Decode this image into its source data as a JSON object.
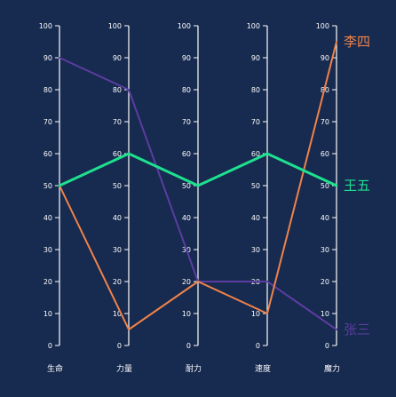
{
  "chart_data": {
    "type": "line",
    "subtype": "parallel-coordinates",
    "categories": [
      "生命",
      "力量",
      "耐力",
      "速度",
      "魔力"
    ],
    "ylim": [
      0,
      100
    ],
    "ticks": [
      0,
      10,
      20,
      30,
      40,
      50,
      60,
      70,
      80,
      90,
      100
    ],
    "grid": false,
    "series": [
      {
        "name": "张三",
        "color": "#5b3da0",
        "values": [
          90,
          80,
          20,
          20,
          5
        ]
      },
      {
        "name": "李四",
        "color": "#f0834a",
        "values": [
          50,
          5,
          20,
          10,
          95
        ]
      },
      {
        "name": "王五",
        "color": "#1ee08f",
        "values": [
          50,
          60,
          50,
          60,
          50
        ]
      }
    ]
  }
}
